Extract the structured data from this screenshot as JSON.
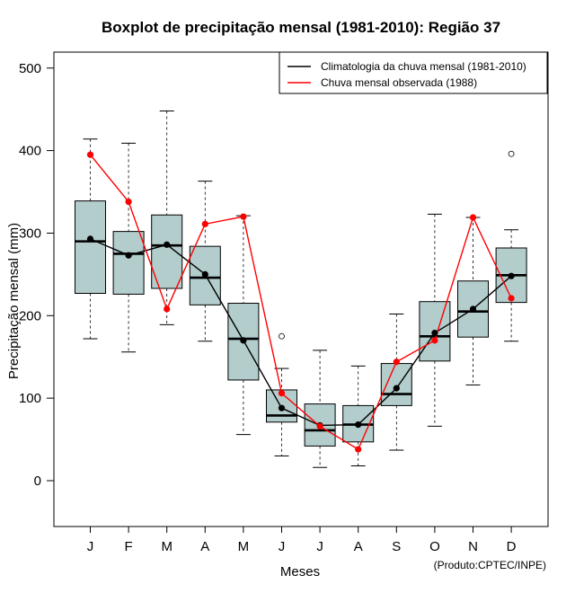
{
  "chart_data": {
    "type": "boxplot",
    "title": "Boxplot de precipitação mensal (1981-2010): Região 37",
    "xlabel": "Meses",
    "ylabel": "Precipitação mensal (mm)",
    "ylim": [
      -55,
      500
    ],
    "yticks": [
      0,
      100,
      200,
      300,
      400,
      500
    ],
    "categories": [
      "J",
      "F",
      "M",
      "A",
      "M",
      "J",
      "J",
      "A",
      "S",
      "O",
      "N",
      "D"
    ],
    "boxes": [
      {
        "whisker_low": 172,
        "q1": 227,
        "median": 290,
        "q3": 339,
        "whisker_high": 414,
        "outliers": []
      },
      {
        "whisker_low": 156,
        "q1": 226,
        "median": 275,
        "q3": 302,
        "whisker_high": 409,
        "outliers": []
      },
      {
        "whisker_low": 189,
        "q1": 233,
        "median": 285,
        "q3": 322,
        "whisker_high": 448,
        "outliers": []
      },
      {
        "whisker_low": 169,
        "q1": 213,
        "median": 246,
        "q3": 284,
        "whisker_high": 363,
        "outliers": []
      },
      {
        "whisker_low": 56,
        "q1": 122,
        "median": 172,
        "q3": 215,
        "whisker_high": 321,
        "outliers": []
      },
      {
        "whisker_low": 30,
        "q1": 71,
        "median": 79,
        "q3": 110,
        "whisker_high": 136,
        "outliers": [
          175
        ]
      },
      {
        "whisker_low": 16,
        "q1": 42,
        "median": 61,
        "q3": 93,
        "whisker_high": 158,
        "outliers": []
      },
      {
        "whisker_low": 18,
        "q1": 47,
        "median": 68,
        "q3": 91,
        "whisker_high": 139,
        "outliers": []
      },
      {
        "whisker_low": 37,
        "q1": 91,
        "median": 105,
        "q3": 142,
        "whisker_high": 202,
        "outliers": []
      },
      {
        "whisker_low": 66,
        "q1": 145,
        "median": 175,
        "q3": 217,
        "whisker_high": 323,
        "outliers": []
      },
      {
        "whisker_low": 116,
        "q1": 174,
        "median": 205,
        "q3": 242,
        "whisker_high": 319,
        "outliers": []
      },
      {
        "whisker_low": 169,
        "q1": 216,
        "median": 249,
        "q3": 282,
        "whisker_high": 304,
        "outliers": [
          396
        ]
      }
    ],
    "series": [
      {
        "name": "Climatologia da chuva mensal (1981-2010)",
        "color": "#000000",
        "values": [
          293,
          273,
          286,
          250,
          170,
          88,
          67,
          68,
          112,
          179,
          208,
          248
        ]
      },
      {
        "name": "Chuva mensal observada (1988)",
        "color": "#ff0000",
        "values": [
          395,
          338,
          208,
          311,
          320,
          106,
          66,
          38,
          144,
          170,
          319,
          221
        ]
      }
    ],
    "box_fill": "#b3cccc",
    "legend_position": "top-right",
    "credit": "(Produto:CPTEC/INPE)"
  }
}
